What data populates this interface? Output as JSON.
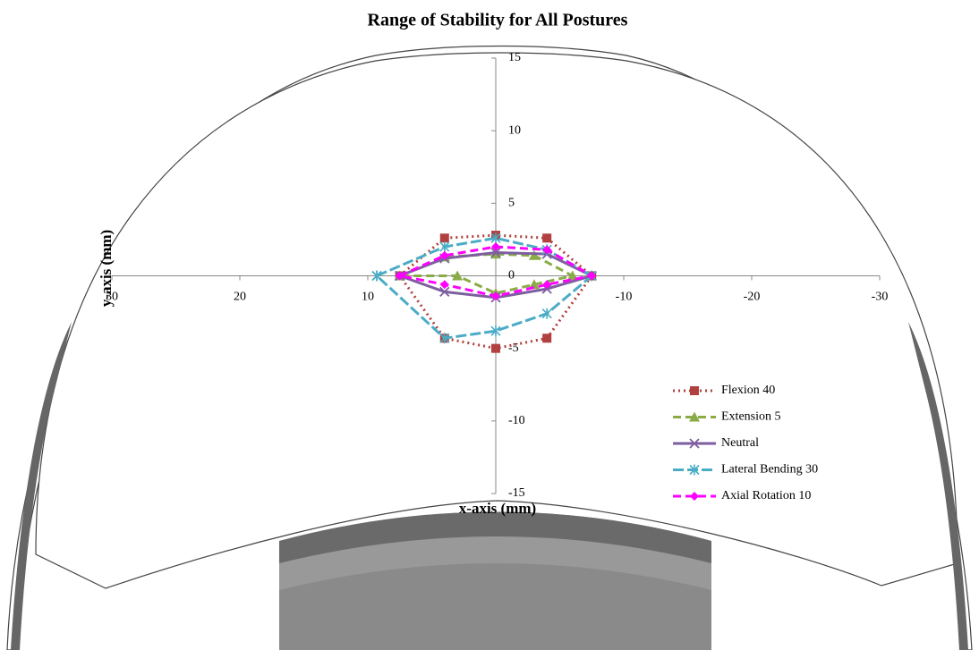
{
  "chart_data": {
    "type": "line",
    "title": "Range of Stability for All Postures",
    "x_label": "x-axis (mm)",
    "y_label": "y-axis (mm)",
    "xlim": [
      30,
      -30
    ],
    "ylim": [
      -15,
      15
    ],
    "xticks": [
      30,
      20,
      10,
      -10,
      -20,
      -30
    ],
    "yticks": [
      15,
      10,
      5,
      0,
      -5,
      -10,
      -15
    ],
    "grid": false,
    "legend": "lower right",
    "series": [
      {
        "name": "Flexion 40",
        "color": "#b0413e",
        "dash": "dotted",
        "marker": "square",
        "x": [
          7.5,
          4,
          0,
          -4,
          -7.5,
          -4,
          0,
          4,
          7.5
        ],
        "values": [
          0,
          2.6,
          2.8,
          2.6,
          0,
          -4.3,
          -5,
          -4.3,
          0
        ]
      },
      {
        "name": "Extension 5",
        "color": "#8aac46",
        "dash": "dashed",
        "marker": "triangle",
        "x": [
          7.5,
          4,
          0,
          -3,
          -6,
          -3,
          0,
          3,
          7.5
        ],
        "values": [
          0,
          1.3,
          1.5,
          1.4,
          0,
          -0.6,
          -1.2,
          0,
          0
        ]
      },
      {
        "name": "Neutral",
        "color": "#7d5fa0",
        "dash": "solid",
        "marker": "x",
        "x": [
          7.5,
          4,
          0,
          -4,
          -7.5,
          -4,
          0,
          4,
          7.5
        ],
        "values": [
          0,
          1.2,
          1.6,
          1.5,
          0,
          -0.9,
          -1.5,
          -1.1,
          0
        ]
      },
      {
        "name": "Lateral Bending 30",
        "color": "#4bacc6",
        "dash": "longdash",
        "marker": "asterisk",
        "x": [
          9.3,
          4,
          0,
          -4,
          -7.5,
          -4,
          0,
          4,
          9.3
        ],
        "values": [
          0,
          2.0,
          2.6,
          1.8,
          0,
          -2.6,
          -3.8,
          -4.3,
          0
        ]
      },
      {
        "name": "Axial Rotation 10",
        "color": "#ff00ff",
        "dash": "dashed",
        "marker": "diamond",
        "x": [
          7.5,
          4,
          0,
          -4,
          -7.5,
          -4,
          0,
          4,
          7.5
        ],
        "values": [
          0,
          1.4,
          2.0,
          1.8,
          0,
          -0.6,
          -1.4,
          -0.6,
          0
        ]
      }
    ]
  }
}
